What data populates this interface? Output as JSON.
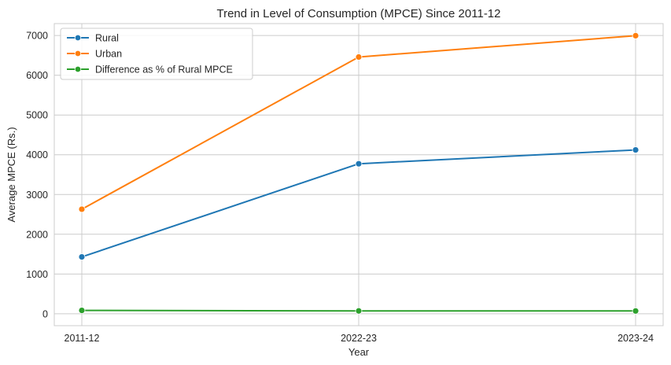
{
  "chart_data": {
    "type": "line",
    "title": "Trend in Level of Consumption (MPCE) Since 2011-12",
    "xlabel": "Year",
    "ylabel": "Average MPCE (Rs.)",
    "categories": [
      "2011-12",
      "2022-23",
      "2023-24"
    ],
    "ylim": [
      -300,
      7300
    ],
    "yticks": [
      0,
      1000,
      2000,
      3000,
      4000,
      5000,
      6000,
      7000
    ],
    "grid": true,
    "legend_position": "top-left",
    "series": [
      {
        "name": "Rural",
        "color": "#1f77b4",
        "marker": "circle",
        "values": [
          1430,
          3773,
          4122
        ]
      },
      {
        "name": "Urban",
        "color": "#ff7f0e",
        "marker": "circle",
        "values": [
          2630,
          6459,
          6996
        ]
      },
      {
        "name": "Difference as % of Rural MPCE",
        "color": "#2ca02c",
        "marker": "circle",
        "values": [
          84,
          71,
          70
        ]
      }
    ]
  }
}
